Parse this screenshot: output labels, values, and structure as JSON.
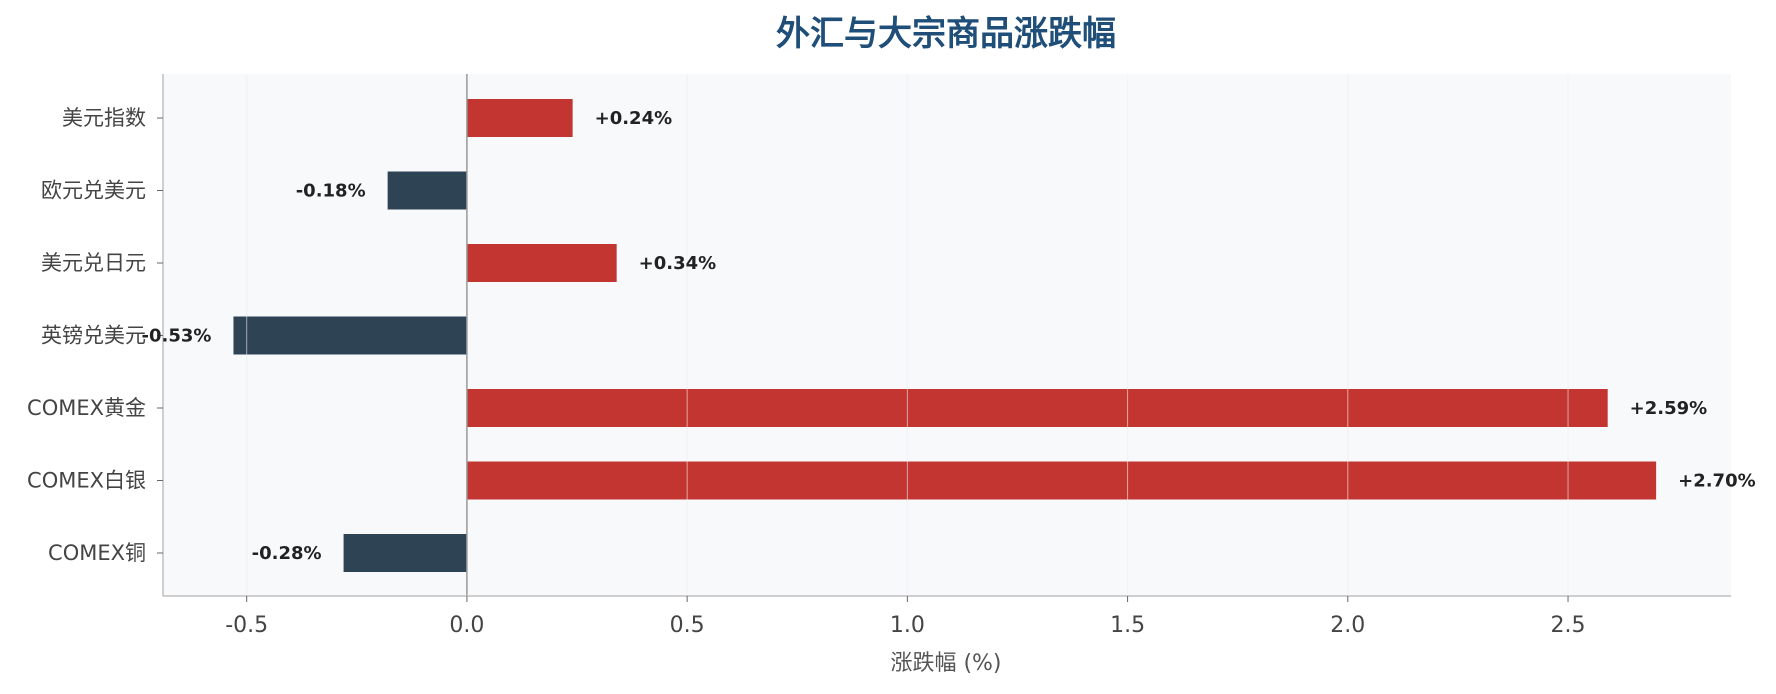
{
  "chart_data": {
    "type": "bar",
    "orientation": "horizontal",
    "title": "外汇与大宗商品涨跌幅",
    "xlabel": "涨跌幅 (%)",
    "ylabel": "",
    "categories": [
      "美元指数",
      "欧元兑美元",
      "美元兑日元",
      "英镑兑美元",
      "COMEX黄金",
      "COMEX白银",
      "COMEX铜"
    ],
    "values": [
      0.24,
      -0.18,
      0.34,
      -0.53,
      2.59,
      2.7,
      -0.28
    ],
    "data_labels": [
      "+0.24%",
      "-0.18%",
      "+0.34%",
      "-0.53%",
      "+2.59%",
      "+2.70%",
      "-0.28%"
    ],
    "xlim": [
      -0.69,
      2.87
    ],
    "xticks": [
      -0.5,
      0.0,
      0.5,
      1.0,
      1.5,
      2.0,
      2.5
    ],
    "xtick_labels": [
      "-0.5",
      "0.0",
      "0.5",
      "1.0",
      "1.5",
      "2.0",
      "2.5"
    ],
    "grid": "vertical",
    "legend": "none",
    "colors": {
      "positive": "#c23531",
      "negative": "#2e4354",
      "title": "#1f4e79",
      "plot_background": "#f8f9fb",
      "grid": "#e4e7eb",
      "axis": "#bfbfbf",
      "zero_line": "#999999"
    }
  }
}
